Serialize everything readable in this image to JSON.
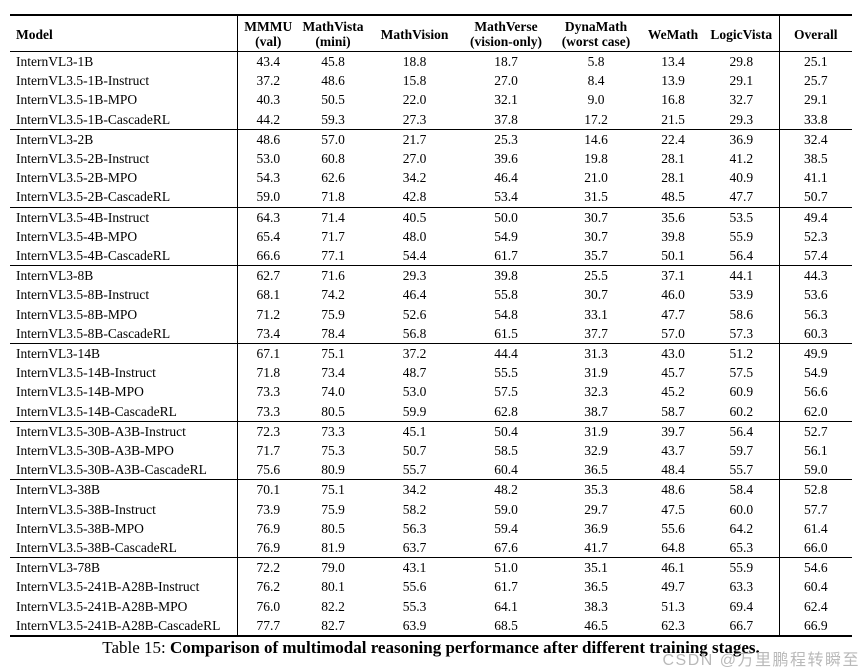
{
  "caption": {
    "prefix": "Table 15: ",
    "bold_text": "Comparison of multimodal reasoning performance after different training stages."
  },
  "watermark": {
    "text": "CSDN @万里鹏程转瞬至"
  },
  "table": {
    "columns": [
      {
        "key": "model",
        "line1": "Model",
        "line2": ""
      },
      {
        "key": "mmmu",
        "line1": "MMMU",
        "line2": "(val)"
      },
      {
        "key": "mathvista",
        "line1": "MathVista",
        "line2": "(mini)"
      },
      {
        "key": "mathvision",
        "line1": "MathVision",
        "line2": ""
      },
      {
        "key": "mathverse",
        "line1": "MathVerse",
        "line2": "(vision-only)"
      },
      {
        "key": "dynamath",
        "line1": "DynaMath",
        "line2": "(worst case)"
      },
      {
        "key": "wemath",
        "line1": "WeMath",
        "line2": ""
      },
      {
        "key": "logicvista",
        "line1": "LogicVista",
        "line2": ""
      },
      {
        "key": "overall",
        "line1": "Overall",
        "line2": ""
      }
    ],
    "groups": [
      {
        "rows": [
          {
            "model": "InternVL3-1B",
            "scores": [
              "43.4",
              "45.8",
              "18.8",
              "18.7",
              "5.8",
              "13.4",
              "29.8",
              "25.1"
            ]
          },
          {
            "model": "InternVL3.5-1B-Instruct",
            "scores": [
              "37.2",
              "48.6",
              "15.8",
              "27.0",
              "8.4",
              "13.9",
              "29.1",
              "25.7"
            ]
          },
          {
            "model": "InternVL3.5-1B-MPO",
            "scores": [
              "40.3",
              "50.5",
              "22.0",
              "32.1",
              "9.0",
              "16.8",
              "32.7",
              "29.1"
            ]
          },
          {
            "model": "InternVL3.5-1B-CascadeRL",
            "scores": [
              "44.2",
              "59.3",
              "27.3",
              "37.8",
              "17.2",
              "21.5",
              "29.3",
              "33.8"
            ]
          }
        ]
      },
      {
        "rows": [
          {
            "model": "InternVL3-2B",
            "scores": [
              "48.6",
              "57.0",
              "21.7",
              "25.3",
              "14.6",
              "22.4",
              "36.9",
              "32.4"
            ]
          },
          {
            "model": "InternVL3.5-2B-Instruct",
            "scores": [
              "53.0",
              "60.8",
              "27.0",
              "39.6",
              "19.8",
              "28.1",
              "41.2",
              "38.5"
            ]
          },
          {
            "model": "InternVL3.5-2B-MPO",
            "scores": [
              "54.3",
              "62.6",
              "34.2",
              "46.4",
              "21.0",
              "28.1",
              "40.9",
              "41.1"
            ]
          },
          {
            "model": "InternVL3.5-2B-CascadeRL",
            "scores": [
              "59.0",
              "71.8",
              "42.8",
              "53.4",
              "31.5",
              "48.5",
              "47.7",
              "50.7"
            ]
          }
        ]
      },
      {
        "rows": [
          {
            "model": "InternVL3.5-4B-Instruct",
            "scores": [
              "64.3",
              "71.4",
              "40.5",
              "50.0",
              "30.7",
              "35.6",
              "53.5",
              "49.4"
            ]
          },
          {
            "model": "InternVL3.5-4B-MPO",
            "scores": [
              "65.4",
              "71.7",
              "48.0",
              "54.9",
              "30.7",
              "39.8",
              "55.9",
              "52.3"
            ]
          },
          {
            "model": "InternVL3.5-4B-CascadeRL",
            "scores": [
              "66.6",
              "77.1",
              "54.4",
              "61.7",
              "35.7",
              "50.1",
              "56.4",
              "57.4"
            ]
          }
        ]
      },
      {
        "rows": [
          {
            "model": "InternVL3-8B",
            "scores": [
              "62.7",
              "71.6",
              "29.3",
              "39.8",
              "25.5",
              "37.1",
              "44.1",
              "44.3"
            ]
          },
          {
            "model": "InternVL3.5-8B-Instruct",
            "scores": [
              "68.1",
              "74.2",
              "46.4",
              "55.8",
              "30.7",
              "46.0",
              "53.9",
              "53.6"
            ]
          },
          {
            "model": "InternVL3.5-8B-MPO",
            "scores": [
              "71.2",
              "75.9",
              "52.6",
              "54.8",
              "33.1",
              "47.7",
              "58.6",
              "56.3"
            ]
          },
          {
            "model": "InternVL3.5-8B-CascadeRL",
            "scores": [
              "73.4",
              "78.4",
              "56.8",
              "61.5",
              "37.7",
              "57.0",
              "57.3",
              "60.3"
            ]
          }
        ]
      },
      {
        "rows": [
          {
            "model": "InternVL3-14B",
            "scores": [
              "67.1",
              "75.1",
              "37.2",
              "44.4",
              "31.3",
              "43.0",
              "51.2",
              "49.9"
            ]
          },
          {
            "model": "InternVL3.5-14B-Instruct",
            "scores": [
              "71.8",
              "73.4",
              "48.7",
              "55.5",
              "31.9",
              "45.7",
              "57.5",
              "54.9"
            ]
          },
          {
            "model": "InternVL3.5-14B-MPO",
            "scores": [
              "73.3",
              "74.0",
              "53.0",
              "57.5",
              "32.3",
              "45.2",
              "60.9",
              "56.6"
            ]
          },
          {
            "model": "InternVL3.5-14B-CascadeRL",
            "scores": [
              "73.3",
              "80.5",
              "59.9",
              "62.8",
              "38.7",
              "58.7",
              "60.2",
              "62.0"
            ]
          }
        ]
      },
      {
        "rows": [
          {
            "model": "InternVL3.5-30B-A3B-Instruct",
            "scores": [
              "72.3",
              "73.3",
              "45.1",
              "50.4",
              "31.9",
              "39.7",
              "56.4",
              "52.7"
            ]
          },
          {
            "model": "InternVL3.5-30B-A3B-MPO",
            "scores": [
              "71.7",
              "75.3",
              "50.7",
              "58.5",
              "32.9",
              "43.7",
              "59.7",
              "56.1"
            ]
          },
          {
            "model": "InternVL3.5-30B-A3B-CascadeRL",
            "scores": [
              "75.6",
              "80.9",
              "55.7",
              "60.4",
              "36.5",
              "48.4",
              "55.7",
              "59.0"
            ]
          }
        ]
      },
      {
        "rows": [
          {
            "model": "InternVL3-38B",
            "scores": [
              "70.1",
              "75.1",
              "34.2",
              "48.2",
              "35.3",
              "48.6",
              "58.4",
              "52.8"
            ]
          },
          {
            "model": "InternVL3.5-38B-Instruct",
            "scores": [
              "73.9",
              "75.9",
              "58.2",
              "59.0",
              "29.7",
              "47.5",
              "60.0",
              "57.7"
            ]
          },
          {
            "model": "InternVL3.5-38B-MPO",
            "scores": [
              "76.9",
              "80.5",
              "56.3",
              "59.4",
              "36.9",
              "55.6",
              "64.2",
              "61.4"
            ]
          },
          {
            "model": "InternVL3.5-38B-CascadeRL",
            "scores": [
              "76.9",
              "81.9",
              "63.7",
              "67.6",
              "41.7",
              "64.8",
              "65.3",
              "66.0"
            ]
          }
        ]
      },
      {
        "rows": [
          {
            "model": "InternVL3-78B",
            "scores": [
              "72.2",
              "79.0",
              "43.1",
              "51.0",
              "35.1",
              "46.1",
              "55.9",
              "54.6"
            ]
          },
          {
            "model": "InternVL3.5-241B-A28B-Instruct",
            "scores": [
              "76.2",
              "80.1",
              "55.6",
              "61.7",
              "36.5",
              "49.7",
              "63.3",
              "60.4"
            ]
          },
          {
            "model": "InternVL3.5-241B-A28B-MPO",
            "scores": [
              "76.0",
              "82.2",
              "55.3",
              "64.1",
              "38.3",
              "51.3",
              "69.4",
              "62.4"
            ]
          },
          {
            "model": "InternVL3.5-241B-A28B-CascadeRL",
            "scores": [
              "77.7",
              "82.7",
              "63.9",
              "68.5",
              "46.5",
              "62.3",
              "66.7",
              "66.9"
            ]
          }
        ]
      }
    ]
  }
}
